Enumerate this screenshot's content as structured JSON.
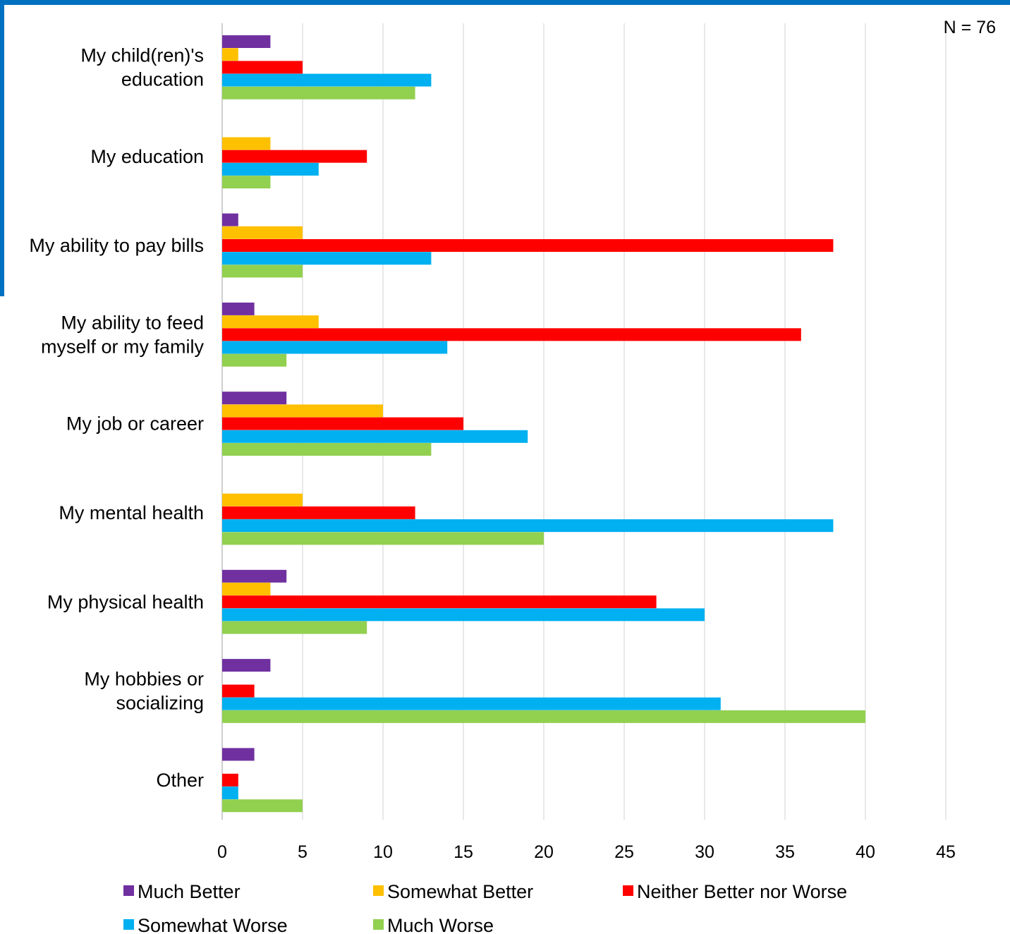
{
  "chart_data": {
    "type": "bar",
    "orientation": "horizontal",
    "annotation": "N = 76",
    "categories": [
      [
        "My child(ren)'s",
        "education"
      ],
      [
        "My education"
      ],
      [
        "My ability to pay bills"
      ],
      [
        "My ability to feed",
        "myself or my family"
      ],
      [
        "My job or career"
      ],
      [
        "My mental health"
      ],
      [
        "My physical health"
      ],
      [
        "My hobbies or",
        "socializing"
      ],
      [
        "Other"
      ]
    ],
    "series": [
      {
        "name": "Much Better",
        "color": "#7030A0",
        "values": [
          3,
          0,
          1,
          2,
          4,
          0,
          4,
          3,
          2
        ]
      },
      {
        "name": "Somewhat Better",
        "color": "#FFC000",
        "values": [
          1,
          3,
          5,
          6,
          10,
          5,
          3,
          0,
          0
        ]
      },
      {
        "name": "Neither Better nor Worse",
        "color": "#FF0000",
        "values": [
          5,
          9,
          38,
          36,
          15,
          12,
          27,
          2,
          1
        ]
      },
      {
        "name": "Somewhat Worse",
        "color": "#00B0F0",
        "values": [
          13,
          6,
          13,
          14,
          19,
          38,
          30,
          31,
          1
        ]
      },
      {
        "name": "Much Worse",
        "color": "#92D050",
        "values": [
          12,
          3,
          5,
          4,
          13,
          20,
          9,
          40,
          5
        ]
      }
    ],
    "xlim": [
      0,
      45
    ],
    "xticks": [
      0,
      5,
      10,
      15,
      20,
      25,
      30,
      35,
      40,
      45
    ],
    "grid": "vertical",
    "legend": "bottom"
  }
}
